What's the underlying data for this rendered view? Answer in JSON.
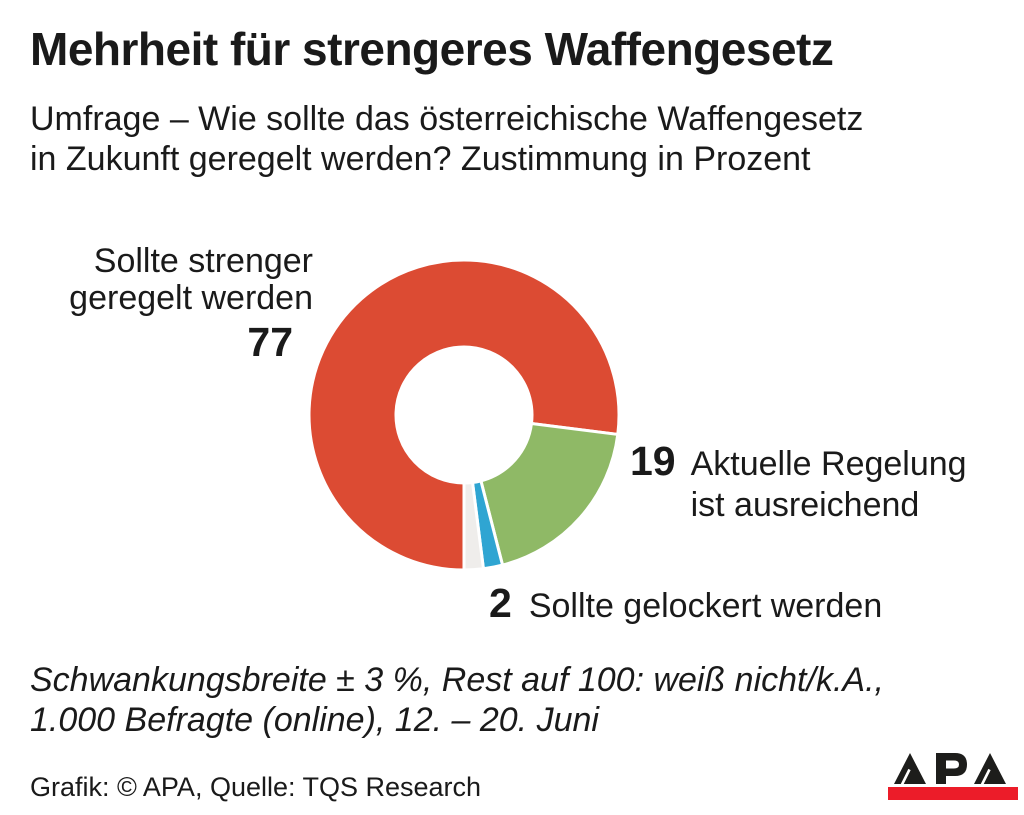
{
  "header": {
    "title": "Mehrheit für strengeres Waffengesetz",
    "subtitle_lines": [
      "Umfrage – Wie sollte das österreichische Waffengesetz",
      "in Zukunft geregelt werden? Zustimmung in Prozent"
    ]
  },
  "chart_data": {
    "type": "pie",
    "variant": "donut",
    "title": "Wie sollte das österreichische Waffengesetz in Zukunft geregelt werden? Zustimmung in Prozent",
    "start_angle_deg": 180,
    "direction": "clockwise",
    "inner_radius_ratio": 0.44,
    "separator_color": "#ffffff",
    "segments": [
      {
        "label": "Sollte strenger geregelt werden",
        "label_lines": [
          "Sollte strenger",
          "geregelt werden"
        ],
        "value": 77,
        "color": "#dc4b33"
      },
      {
        "label": "Aktuelle Regelung ist ausreichend",
        "label_lines": [
          "Aktuelle Regelung",
          "ist ausreichend"
        ],
        "value": 19,
        "color": "#8fb966"
      },
      {
        "label": "Sollte gelockert werden",
        "label_lines": [
          "Sollte gelockert werden"
        ],
        "value": 2,
        "color": "#2fa5d2"
      },
      {
        "label": "weiß nicht/k.A.",
        "label_lines": [],
        "value": 2,
        "color": "#efedeb"
      }
    ]
  },
  "footnote_lines": [
    "Schwankungsbreite ± 3 %, Rest auf 100: weiß nicht/k.A.,",
    "1.000 Befragte (online), 12. – 20. Juni"
  ],
  "credit": "Grafik: © APA, Quelle: TQS Research",
  "logo": {
    "text": "APA",
    "bar_color": "#ec1c29",
    "letter_color": "#1d1d1b"
  }
}
